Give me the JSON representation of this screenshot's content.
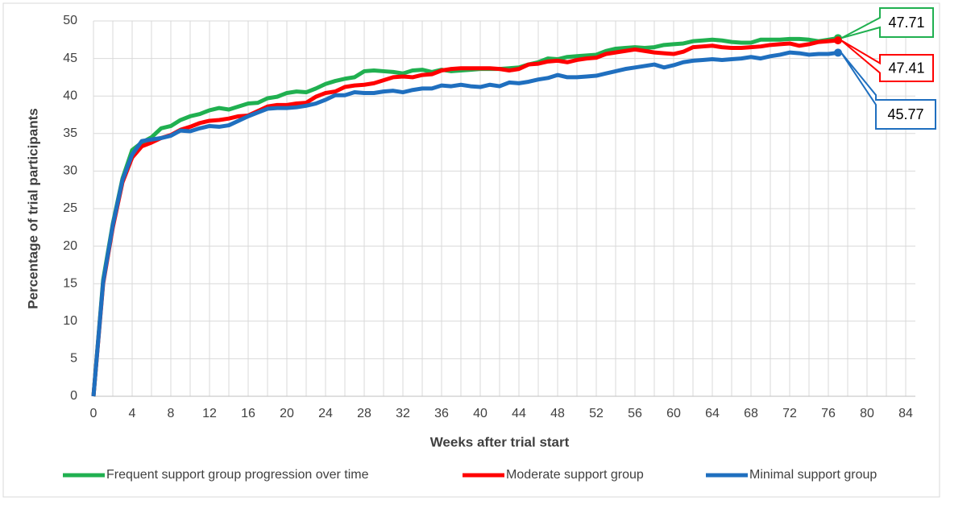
{
  "chart_data": {
    "type": "line",
    "x_label": "Weeks after trial start",
    "y_label": "Percentage  of trial participants",
    "x": [
      0,
      1,
      2,
      3,
      4,
      5,
      6,
      7,
      8,
      9,
      10,
      11,
      12,
      13,
      14,
      15,
      16,
      17,
      18,
      19,
      20,
      21,
      22,
      23,
      24,
      25,
      26,
      27,
      28,
      29,
      30,
      31,
      32,
      33,
      34,
      35,
      36,
      37,
      38,
      39,
      40,
      41,
      42,
      43,
      44,
      45,
      46,
      47,
      48,
      49,
      50,
      51,
      52,
      53,
      54,
      55,
      56,
      57,
      58,
      59,
      60,
      61,
      62,
      63,
      64,
      65,
      66,
      67,
      68,
      69,
      70,
      71,
      72,
      73,
      74,
      75,
      76,
      77
    ],
    "series": [
      {
        "name": "Frequent support group progression over time",
        "color": "#20b050",
        "values": [
          0,
          15.5,
          23,
          29,
          32.8,
          33.8,
          34.5,
          35.7,
          36,
          36.8,
          37.3,
          37.6,
          38.1,
          38.4,
          38.2,
          38.6,
          39,
          39.1,
          39.7,
          39.9,
          40.4,
          40.6,
          40.5,
          41,
          41.6,
          42,
          42.3,
          42.5,
          43.3,
          43.4,
          43.3,
          43.2,
          43,
          43.4,
          43.5,
          43.2,
          43.5,
          43.3,
          43.4,
          43.5,
          43.6,
          43.6,
          43.6,
          43.7,
          43.8,
          44.2,
          44.5,
          45,
          44.9,
          45.2,
          45.3,
          45.4,
          45.5,
          46,
          46.3,
          46.4,
          46.5,
          46.4,
          46.5,
          46.8,
          46.9,
          47,
          47.3,
          47.4,
          47.5,
          47.4,
          47.2,
          47.1,
          47.1,
          47.5,
          47.5,
          47.5,
          47.6,
          47.6,
          47.5,
          47.3,
          47.5,
          47.71
        ]
      },
      {
        "name": "Moderate support group",
        "color": "#ff0000",
        "values": [
          0,
          15,
          22.5,
          28.5,
          31.8,
          33.3,
          33.8,
          34.4,
          34.8,
          35.5,
          35.9,
          36.4,
          36.7,
          36.8,
          37,
          37.3,
          37.4,
          38,
          38.6,
          38.8,
          38.8,
          39,
          39.1,
          39.9,
          40.4,
          40.6,
          41.2,
          41.4,
          41.5,
          41.7,
          42.1,
          42.5,
          42.6,
          42.5,
          42.8,
          42.9,
          43.4,
          43.6,
          43.7,
          43.7,
          43.7,
          43.7,
          43.6,
          43.4,
          43.6,
          44.2,
          44.3,
          44.6,
          44.7,
          44.5,
          44.8,
          45,
          45.1,
          45.6,
          45.8,
          46,
          46.2,
          46,
          45.8,
          45.7,
          45.6,
          45.9,
          46.5,
          46.6,
          46.7,
          46.5,
          46.4,
          46.4,
          46.5,
          46.6,
          46.8,
          46.9,
          47,
          46.7,
          46.9,
          47.2,
          47.3,
          47.41
        ]
      },
      {
        "name": "Minimal support group",
        "color": "#1f6fbf",
        "values": [
          0,
          15.2,
          22.8,
          28.8,
          32.2,
          34,
          34.2,
          34.4,
          34.7,
          35.4,
          35.3,
          35.7,
          36,
          35.9,
          36.1,
          36.7,
          37.3,
          37.8,
          38.3,
          38.4,
          38.4,
          38.5,
          38.7,
          39,
          39.5,
          40.1,
          40.1,
          40.5,
          40.4,
          40.4,
          40.6,
          40.7,
          40.5,
          40.8,
          41,
          41,
          41.4,
          41.3,
          41.5,
          41.3,
          41.2,
          41.5,
          41.3,
          41.8,
          41.7,
          41.9,
          42.2,
          42.4,
          42.8,
          42.5,
          42.5,
          42.6,
          42.7,
          43,
          43.3,
          43.6,
          43.8,
          44,
          44.2,
          43.8,
          44.1,
          44.5,
          44.7,
          44.8,
          44.9,
          44.8,
          44.9,
          45,
          45.2,
          45,
          45.3,
          45.5,
          45.8,
          45.7,
          45.5,
          45.6,
          45.6,
          45.77
        ]
      }
    ],
    "xlim": [
      0,
      85
    ],
    "ylim": [
      0,
      50
    ],
    "xticks": [
      0,
      4,
      8,
      12,
      16,
      20,
      24,
      28,
      32,
      36,
      40,
      44,
      48,
      52,
      56,
      60,
      64,
      68,
      72,
      76,
      80,
      84
    ],
    "x_minor_grid_step": 2,
    "yticks": [
      0,
      5,
      10,
      15,
      20,
      25,
      30,
      35,
      40,
      45,
      50
    ],
    "grid": true,
    "legend": "bottom"
  }
}
